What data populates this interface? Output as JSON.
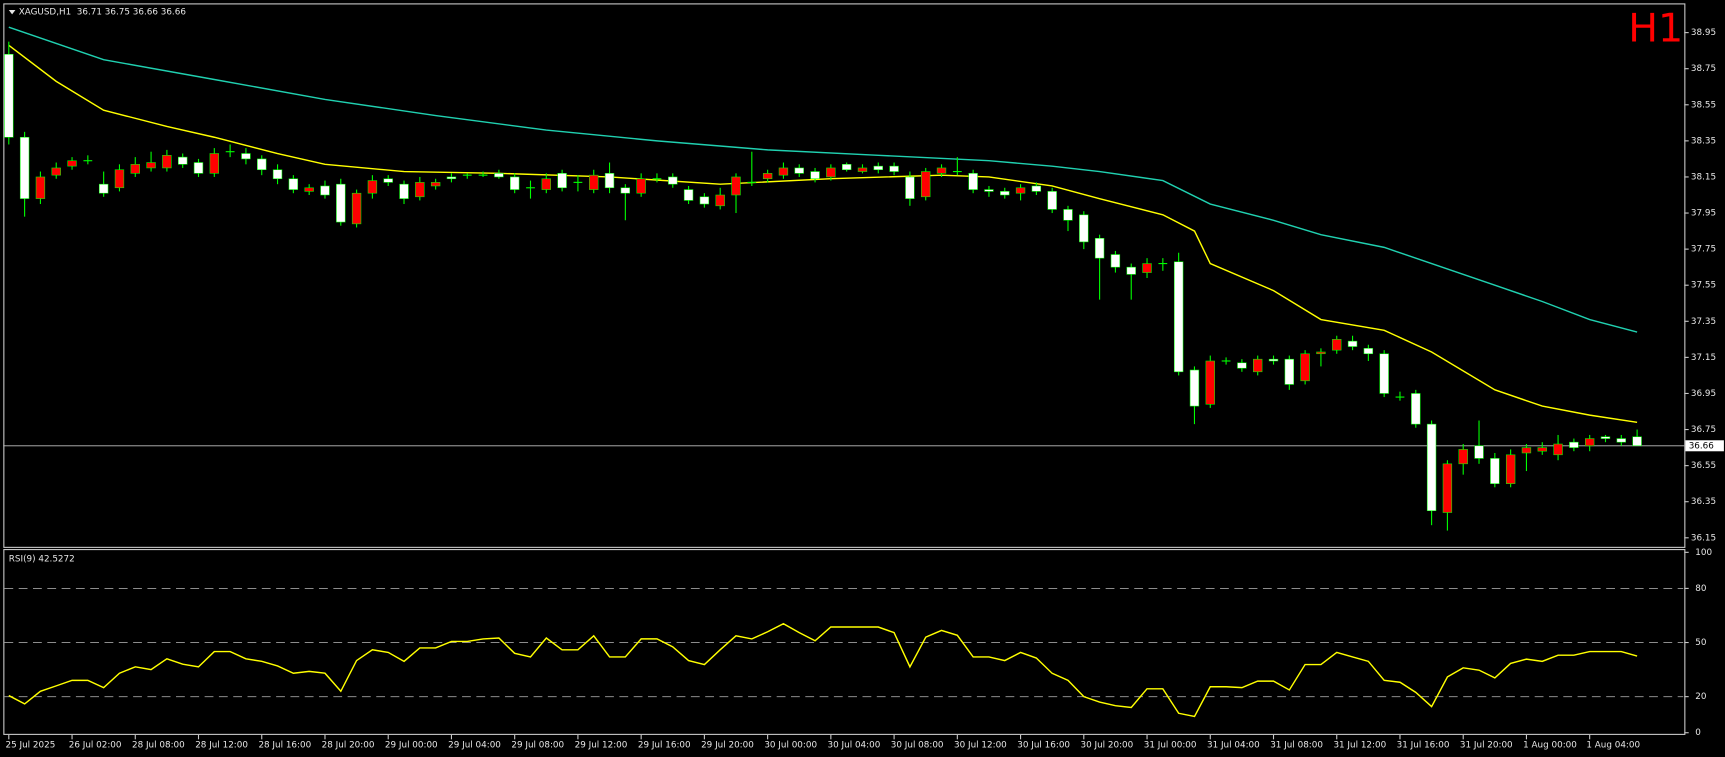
{
  "chart_data": [
    {
      "type": "candlestick",
      "title": "XAGUSD,H1  36.71 36.75 36.66 36.66",
      "badge": "H1",
      "categories": [
        "25 Jul 2025",
        null,
        null,
        null,
        "26 Jul 02:00",
        null,
        null,
        null,
        "28 Jul 08:00",
        null,
        null,
        null,
        "28 Jul 12:00",
        null,
        null,
        null,
        "28 Jul 16:00",
        null,
        null,
        null,
        "28 Jul 20:00",
        null,
        null,
        null,
        "29 Jul 00:00",
        null,
        null,
        null,
        "29 Jul 04:00",
        null,
        null,
        null,
        "29 Jul 08:00",
        null,
        null,
        null,
        "29 Jul 12:00",
        null,
        null,
        null,
        "29 Jul 16:00",
        null,
        null,
        null,
        "29 Jul 20:00",
        null,
        null,
        null,
        "30 Jul 00:00",
        null,
        null,
        null,
        "30 Jul 04:00",
        null,
        null,
        null,
        "30 Jul 08:00",
        null,
        null,
        null,
        "30 Jul 12:00",
        null,
        null,
        null,
        "30 Jul 16:00",
        null,
        null,
        null,
        "30 Jul 20:00",
        null,
        null,
        null,
        "31 Jul 00:00",
        null,
        null,
        null,
        "31 Jul 04:00",
        null,
        null,
        null,
        "31 Jul 08:00",
        null,
        null,
        null,
        "31 Jul 12:00",
        null,
        null,
        null,
        "31 Jul 16:00",
        null,
        null,
        null,
        "31 Jul 20:00",
        null,
        null,
        null,
        "1 Aug 00:00",
        null,
        null,
        null,
        "1 Aug 04:00",
        null,
        null,
        null
      ],
      "open": [
        38.83,
        38.37,
        38.03,
        38.16,
        38.21,
        38.24,
        38.11,
        38.09,
        38.17,
        38.2,
        38.2,
        38.26,
        38.23,
        38.17,
        38.29,
        38.28,
        38.25,
        38.19,
        38.14,
        38.07,
        38.1,
        38.11,
        37.89,
        38.06,
        38.14,
        38.11,
        38.04,
        38.1,
        38.15,
        38.16,
        38.16,
        38.17,
        38.15,
        38.09,
        38.08,
        38.17,
        38.12,
        38.08,
        38.17,
        38.09,
        38.06,
        38.14,
        38.15,
        38.08,
        38.04,
        37.99,
        38.05,
        38.12,
        38.14,
        38.16,
        38.2,
        38.18,
        38.15,
        38.22,
        38.18,
        38.21,
        38.21,
        38.15,
        38.04,
        38.17,
        38.18,
        38.17,
        38.08,
        38.07,
        38.06,
        38.1,
        38.07,
        37.97,
        37.94,
        37.81,
        37.72,
        37.65,
        37.62,
        37.67,
        37.68,
        37.08,
        36.89,
        37.13,
        37.12,
        37.07,
        37.14,
        37.14,
        37.02,
        37.17,
        37.19,
        37.24,
        37.2,
        37.17,
        36.93,
        36.95,
        36.78,
        36.29,
        36.56,
        36.66,
        36.59,
        36.45,
        36.62,
        36.63,
        36.61,
        36.68,
        36.66,
        36.71,
        36.7,
        36.71
      ],
      "high": [
        38.9,
        38.4,
        38.18,
        38.23,
        38.26,
        38.27,
        38.18,
        38.22,
        38.26,
        38.29,
        38.3,
        38.28,
        38.25,
        38.31,
        38.33,
        38.31,
        38.27,
        38.22,
        38.16,
        38.11,
        38.13,
        38.14,
        38.08,
        38.16,
        38.16,
        38.13,
        38.15,
        38.14,
        38.17,
        38.17,
        38.18,
        38.19,
        38.17,
        38.13,
        38.17,
        38.19,
        38.16,
        38.19,
        38.23,
        38.11,
        38.17,
        38.17,
        38.17,
        38.1,
        38.06,
        38.09,
        38.17,
        38.29,
        38.19,
        38.23,
        38.22,
        38.2,
        38.22,
        38.23,
        38.22,
        38.23,
        38.23,
        38.18,
        38.2,
        38.22,
        38.26,
        38.19,
        38.1,
        38.09,
        38.11,
        38.12,
        38.09,
        37.99,
        37.96,
        37.83,
        37.74,
        37.67,
        37.7,
        37.7,
        37.73,
        37.1,
        37.16,
        37.15,
        37.14,
        37.16,
        37.16,
        37.16,
        37.19,
        37.2,
        37.27,
        37.27,
        37.22,
        37.19,
        36.96,
        36.97,
        36.8,
        36.58,
        36.67,
        36.8,
        36.62,
        36.64,
        36.67,
        36.68,
        36.72,
        36.7,
        36.72,
        36.72,
        36.72,
        36.75
      ],
      "low": [
        38.33,
        37.93,
        38.0,
        38.14,
        38.19,
        38.22,
        38.04,
        38.07,
        38.15,
        38.18,
        38.18,
        38.2,
        38.15,
        38.15,
        38.26,
        38.22,
        38.16,
        38.11,
        38.06,
        38.05,
        38.03,
        37.88,
        37.87,
        38.03,
        38.1,
        38.0,
        38.02,
        38.08,
        38.12,
        38.14,
        38.15,
        38.14,
        38.06,
        38.03,
        38.06,
        38.07,
        38.07,
        38.06,
        38.06,
        37.91,
        38.04,
        38.12,
        38.09,
        38.0,
        37.98,
        37.97,
        37.95,
        38.1,
        38.12,
        38.14,
        38.15,
        38.12,
        38.13,
        38.18,
        38.17,
        38.17,
        38.16,
        37.99,
        38.02,
        38.15,
        38.16,
        38.06,
        38.04,
        38.03,
        38.02,
        38.05,
        37.95,
        37.85,
        37.75,
        37.47,
        37.62,
        37.47,
        37.59,
        37.63,
        37.05,
        36.78,
        36.87,
        37.11,
        37.07,
        37.05,
        37.11,
        36.97,
        37.0,
        37.1,
        37.17,
        37.19,
        37.13,
        36.93,
        36.91,
        36.76,
        36.22,
        36.19,
        36.5,
        36.56,
        36.43,
        36.43,
        36.52,
        36.61,
        36.58,
        36.63,
        36.63,
        36.68,
        36.66,
        36.66
      ],
      "close": [
        38.37,
        38.03,
        38.15,
        38.2,
        38.24,
        38.24,
        38.06,
        38.19,
        38.22,
        38.23,
        38.27,
        38.22,
        38.17,
        38.28,
        38.29,
        38.25,
        38.19,
        38.14,
        38.08,
        38.09,
        38.05,
        37.9,
        38.06,
        38.13,
        38.12,
        38.03,
        38.12,
        38.12,
        38.14,
        38.16,
        38.16,
        38.15,
        38.08,
        38.09,
        38.14,
        38.09,
        38.12,
        38.16,
        38.09,
        38.06,
        38.14,
        38.14,
        38.11,
        38.02,
        38.0,
        38.05,
        38.15,
        38.12,
        38.17,
        38.2,
        38.17,
        38.14,
        38.2,
        38.19,
        38.2,
        38.19,
        38.18,
        38.03,
        38.18,
        38.2,
        38.18,
        38.08,
        38.07,
        38.05,
        38.09,
        38.07,
        37.97,
        37.91,
        37.79,
        37.7,
        37.65,
        37.61,
        37.67,
        37.67,
        37.07,
        36.88,
        37.13,
        37.13,
        37.09,
        37.14,
        37.13,
        37.0,
        37.17,
        37.18,
        37.25,
        37.21,
        37.17,
        36.95,
        36.93,
        36.78,
        36.3,
        36.56,
        36.64,
        36.59,
        36.45,
        36.61,
        36.65,
        36.65,
        36.67,
        36.65,
        36.7,
        36.7,
        36.68,
        36.66
      ],
      "colors": {
        "up": "#ff0000",
        "down": "#ffffff",
        "doji": "#00ff00",
        "wick": "#00ff00"
      },
      "ylim": [
        36.1,
        39.1
      ],
      "yticks": [
        36.15,
        36.35,
        36.55,
        36.75,
        36.95,
        37.15,
        37.35,
        37.55,
        37.75,
        37.95,
        38.15,
        38.35,
        38.55,
        38.75,
        38.95
      ],
      "last_price": 36.66,
      "overlays": [
        {
          "type": "line",
          "color": "#ffff00",
          "x": [
            0,
            3,
            6,
            10,
            13,
            17,
            20,
            25,
            31,
            38,
            45,
            52,
            59,
            62,
            66,
            69,
            73,
            75,
            76,
            80,
            83,
            87,
            90,
            94,
            97,
            100,
            103
          ],
          "values": [
            38.88,
            38.68,
            38.52,
            38.43,
            38.37,
            38.28,
            38.22,
            38.18,
            38.17,
            38.15,
            38.11,
            38.14,
            38.16,
            38.15,
            38.1,
            38.03,
            37.94,
            37.85,
            37.67,
            37.52,
            37.36,
            37.3,
            37.18,
            36.97,
            36.88,
            36.83,
            36.79
          ]
        },
        {
          "type": "line",
          "color": "#20d0b0",
          "x": [
            0,
            3,
            6,
            13,
            20,
            27,
            34,
            41,
            48,
            55,
            62,
            66,
            69,
            73,
            76,
            80,
            83,
            87,
            90,
            94,
            97,
            100,
            103
          ],
          "values": [
            38.98,
            38.89,
            38.8,
            38.69,
            38.58,
            38.49,
            38.41,
            38.35,
            38.3,
            38.27,
            38.24,
            38.21,
            38.18,
            38.13,
            38.0,
            37.91,
            37.83,
            37.76,
            37.67,
            37.55,
            37.46,
            37.36,
            37.29
          ]
        }
      ]
    },
    {
      "type": "line",
      "title": "RSI(9) 42.5272",
      "color": "#ffff00",
      "values": [
        20.6,
        16,
        23,
        26,
        29,
        29,
        25,
        33,
        36.5,
        35,
        41,
        38,
        36.5,
        45,
        45,
        41,
        39.6,
        37,
        33,
        34,
        33,
        23,
        40,
        46,
        44.5,
        39.6,
        47,
        47,
        50.6,
        50.6,
        52,
        52.5,
        44,
        42,
        52.5,
        46,
        46,
        53.7,
        42,
        42,
        52,
        52,
        47.6,
        40,
        37.8,
        46,
        53.7,
        52,
        56,
        60.4,
        55.5,
        51,
        58.6,
        58.6,
        58.6,
        58.6,
        55.5,
        36.5,
        53,
        56.7,
        54,
        42,
        42,
        40,
        44.5,
        41.4,
        32.9,
        29,
        20,
        17,
        15,
        14,
        24.3,
        24.3,
        10.8,
        9,
        25.5,
        25.5,
        25,
        28.6,
        28.6,
        23.7,
        37.8,
        37.8,
        44.5,
        42,
        39.6,
        29,
        28,
        22.4,
        14.5,
        31,
        36,
        34.7,
        30.4,
        38.4,
        40.8,
        39.6,
        43,
        43,
        45,
        45,
        45,
        42.5
      ],
      "ylim": [
        0,
        100
      ],
      "yticks": [
        0,
        20,
        50,
        80,
        100
      ],
      "levels": [
        20,
        50,
        80
      ]
    }
  ]
}
